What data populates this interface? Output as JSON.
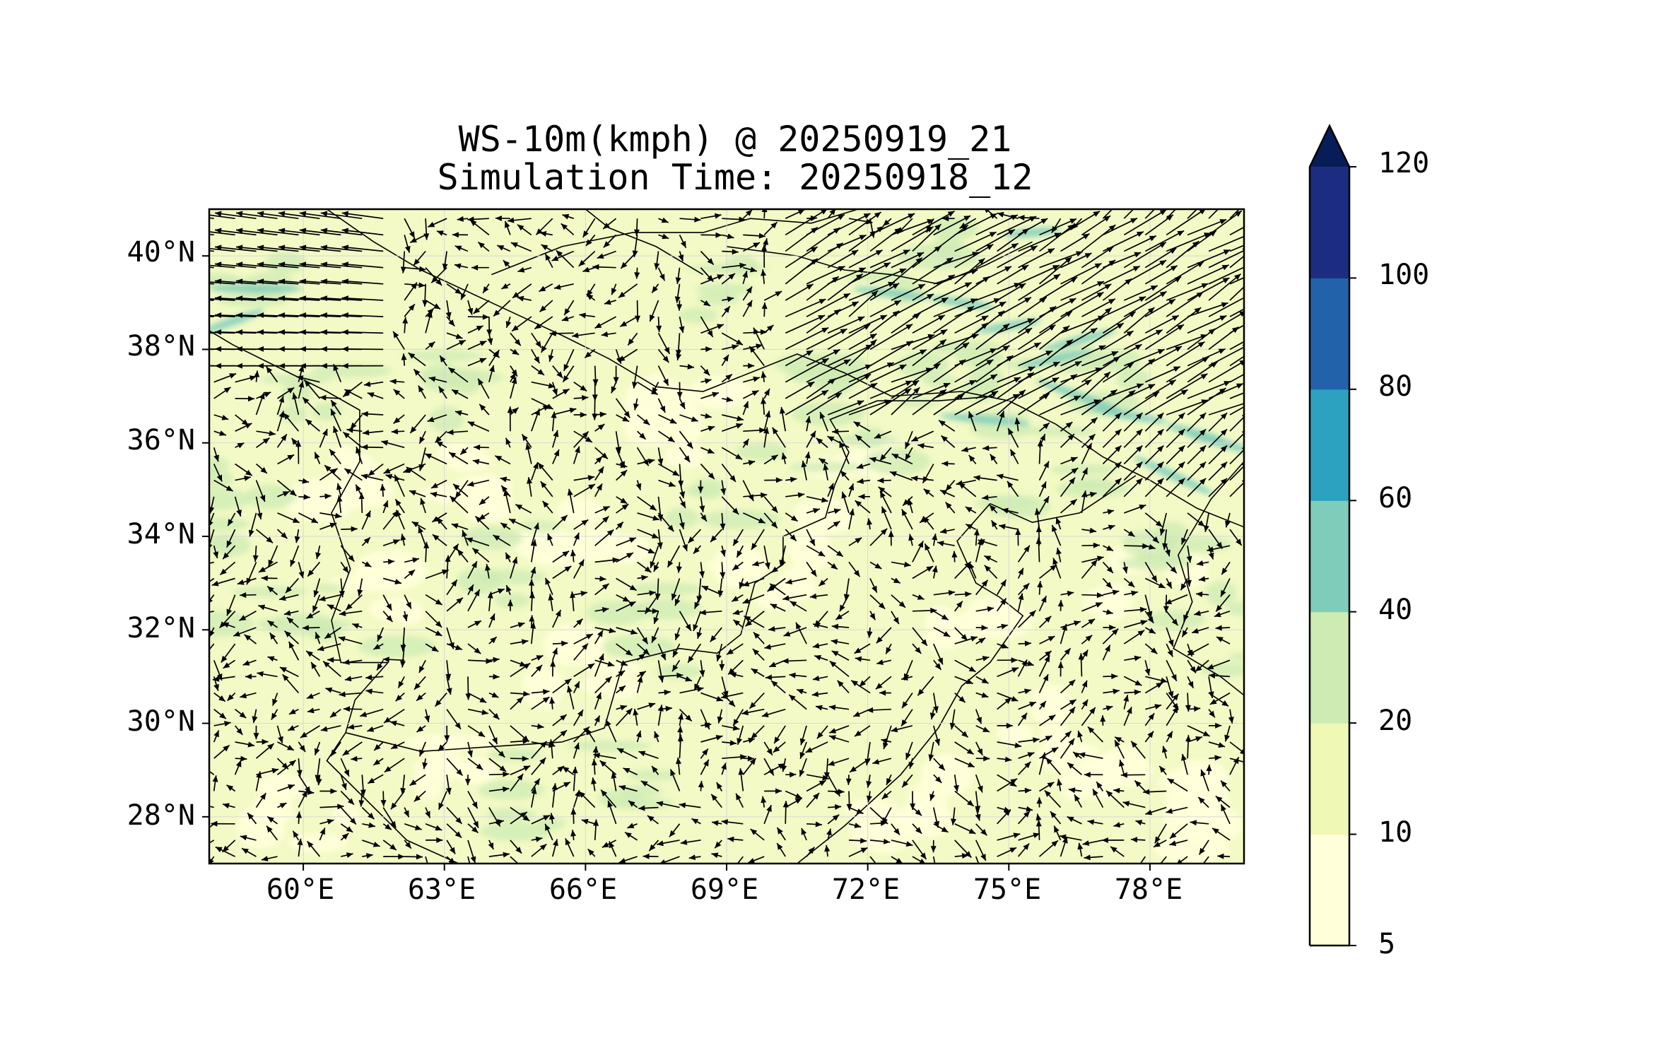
{
  "title_line1": "WS-10m(kmph) @ 20250919_21",
  "title_line2": "Simulation Time: 20250918_12",
  "map": {
    "projection": "PlateCarree",
    "extent": {
      "lon_min": 58.0,
      "lon_max": 80.0,
      "lat_min": 27.0,
      "lat_max": 41.0
    },
    "gridlines": true,
    "y_ticks": [
      "40°N",
      "38°N",
      "36°N",
      "34°N",
      "32°N",
      "30°N",
      "28°N"
    ],
    "x_ticks": [
      "60°E",
      "63°E",
      "66°E",
      "69°E",
      "72°E",
      "75°E",
      "78°E"
    ]
  },
  "colorbar": {
    "extend": "max",
    "levels": [
      "5",
      "10",
      "20",
      "40",
      "60",
      "80",
      "100",
      "120"
    ],
    "colors": [
      "#ffffd9",
      "#eff8b5",
      "#cdebb3",
      "#7fccbb",
      "#2ca2c0",
      "#2162ab",
      "#1c2d81",
      "#081d58"
    ]
  },
  "wind_field": {
    "field_color": "#f3fac5",
    "arrow_color": "#000000",
    "border_color": "#000000"
  }
}
